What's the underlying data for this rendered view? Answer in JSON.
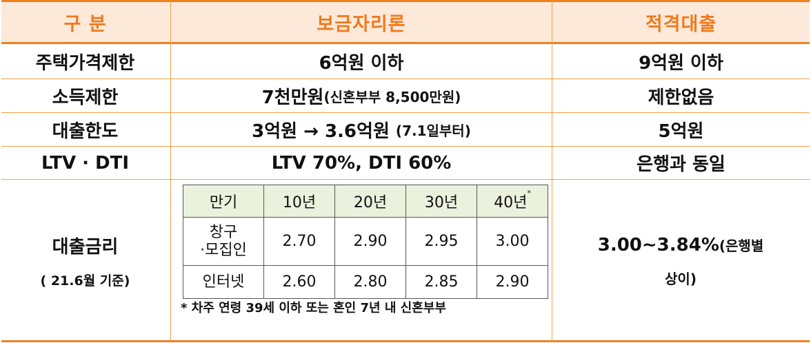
{
  "header": {
    "category": "구   분",
    "bogeumjari": "보금자리론",
    "jeokgyeok": "적격대출"
  },
  "rows": [
    {
      "label": "주택가격제한",
      "bogeumjari": "6억원 이하",
      "jeokgyeok": "9억원 이하"
    },
    {
      "label": "소득제한",
      "bogeumjari_main": "7천만원",
      "bogeumjari_sub": "(신혼부부 8,500만원)",
      "jeokgyeok": "제한없음"
    },
    {
      "label": "대출한도",
      "bogeumjari_main": "3억원 → 3.6억원",
      "bogeumjari_sub": "(7.1일부터)",
      "jeokgyeok": "5억원"
    },
    {
      "label": "LTV · DTI",
      "bogeumjari": "LTV 70%, DTI 60%",
      "jeokgyeok": "은행과 동일"
    }
  ],
  "rate_section": {
    "label": "대출금리",
    "sublabel": "( 21.6월 기준)",
    "table": {
      "headers": [
        "만기",
        "10년",
        "20년",
        "30년",
        "40년"
      ],
      "header_mark": "*",
      "rows": [
        {
          "channel_line1": "창구",
          "channel_line2": "·모집인",
          "values": [
            "2.70",
            "2.90",
            "2.95",
            "3.00"
          ]
        },
        {
          "channel_line1": "인터넷",
          "channel_line2": "",
          "values": [
            "2.60",
            "2.80",
            "2.85",
            "2.90"
          ]
        }
      ]
    },
    "note": "* 차주 연령 39세 이하 또는 혼인 7년 내 신혼부부",
    "jeokgyeok_main": "3.00~3.84%",
    "jeokgyeok_sub1": "(은행별",
    "jeokgyeok_sub2": "상이)"
  },
  "colors": {
    "header_bg": "#fde9d9",
    "header_text": "#ee7a1e",
    "border": "#f0a040",
    "inner_header_bg": "#eaf1dd"
  }
}
